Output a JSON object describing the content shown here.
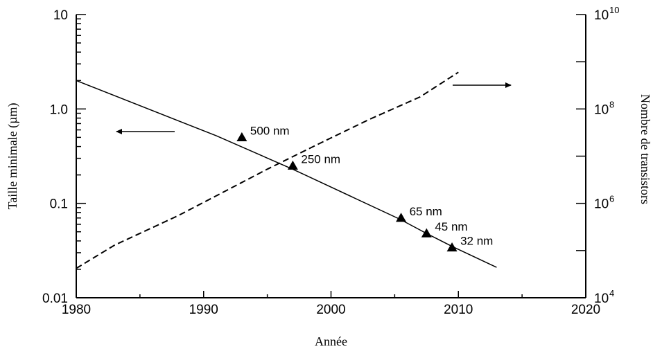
{
  "chart_data": {
    "type": "line",
    "xlabel": "Année",
    "ylabel_left": "Taille minimale (µm)",
    "ylabel_right": "Nombre de transistors",
    "xlim": [
      1980,
      2020
    ],
    "ylim_left": [
      0.01,
      10
    ],
    "ylim_right": [
      10000,
      10000000000
    ],
    "yscale_left": "log",
    "yscale_right": "log",
    "grid": false,
    "x_ticks": [
      "1980",
      "1990",
      "2000",
      "2010",
      "2020"
    ],
    "y_left_ticks": [
      "0.01",
      "0.1",
      "1.0",
      "10"
    ],
    "y_right_ticks": [
      {
        "base": "10",
        "exp": "4"
      },
      {
        "base": "10",
        "exp": "6"
      },
      {
        "base": "10",
        "exp": "8"
      },
      {
        "base": "10",
        "exp": "10"
      }
    ],
    "series": [
      {
        "axis": "left",
        "style": "solid",
        "x": [
          1980,
          1991,
          1997,
          2005.4,
          2007.5,
          2009.5,
          2013
        ],
        "y": [
          2.0,
          0.52,
          0.23,
          0.068,
          0.048,
          0.035,
          0.021
        ]
      },
      {
        "axis": "right",
        "style": "dashed",
        "x": [
          1980,
          1983,
          1988,
          1992,
          1995,
          1999,
          2003,
          2007,
          2010
        ],
        "y": [
          42000,
          130000,
          550000,
          2000000,
          5300000,
          18000000,
          60000000,
          180000000,
          600000000
        ]
      }
    ],
    "markers": [
      {
        "x": 1993,
        "y": 0.5,
        "label": "500 nm"
      },
      {
        "x": 1997,
        "y": 0.25,
        "label": "250 nm"
      },
      {
        "x": 2005.5,
        "y": 0.07,
        "label": "65 nm"
      },
      {
        "x": 2007.5,
        "y": 0.048,
        "label": "45 nm"
      },
      {
        "x": 2009.5,
        "y": 0.034,
        "label": "32 nm"
      }
    ],
    "arrows": [
      {
        "direction": "left",
        "axis": "left"
      },
      {
        "direction": "right",
        "axis": "right"
      }
    ]
  }
}
